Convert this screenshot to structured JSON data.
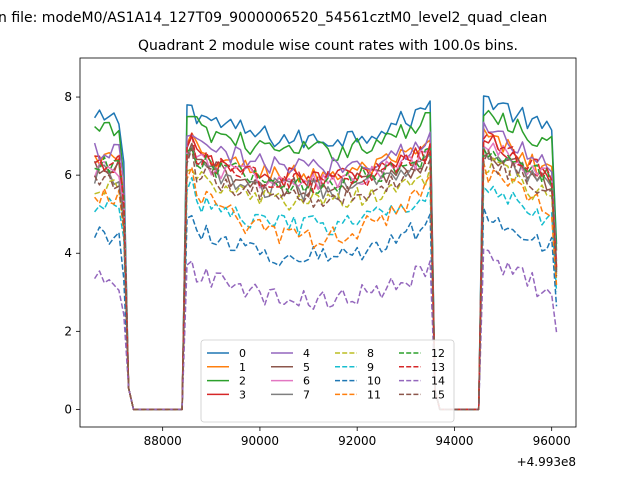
{
  "chart_data": {
    "type": "line",
    "suptitle": "n file: modeM0/AS1A14_127T09_9000006520_54561cztM0_level2_quad_clean",
    "title": "Quadrant 2 module wise count rates with 100.0s bins.",
    "xlabel": "",
    "ylabel": "",
    "x_offset_label": "+4.993e8",
    "xlim": [
      86300,
      96500
    ],
    "ylim": [
      -0.45,
      9.0
    ],
    "xticks": [
      88000,
      90000,
      92000,
      94000,
      96000
    ],
    "xtick_labels": [
      "88000",
      "90000",
      "92000",
      "94000",
      "96000"
    ],
    "yticks": [
      0,
      2,
      4,
      6,
      8
    ],
    "ytick_labels": [
      "0",
      "2",
      "4",
      "6",
      "8"
    ],
    "grid": false,
    "legend_position": "lower-center",
    "legend_ncol": 4,
    "x_segments": {
      "orbit1": {
        "x_start": 86600,
        "x_end": 87200,
        "step": 100
      },
      "gap1": {
        "x": [
          87300,
          87400,
          88400
        ]
      },
      "orbit2": {
        "x_start": 88500,
        "x_end": 93500,
        "step": 100
      },
      "gap2": {
        "x": [
          93600,
          93700,
          94500
        ]
      },
      "orbit3": {
        "x_start": 94600,
        "x_end": 96100,
        "step": 100
      }
    },
    "series": [
      {
        "name": "0",
        "color": "#1f77b4",
        "dash": "solid",
        "level": 7.7,
        "dip": 0.8
      },
      {
        "name": "1",
        "color": "#ff7f0e",
        "dash": "solid",
        "level": 6.7,
        "dip": 0.7
      },
      {
        "name": "2",
        "color": "#2ca02c",
        "dash": "solid",
        "level": 7.4,
        "dip": 0.8
      },
      {
        "name": "3",
        "color": "#d62728",
        "dash": "solid",
        "level": 6.6,
        "dip": 0.7
      },
      {
        "name": "4",
        "color": "#9467bd",
        "dash": "solid",
        "level": 6.9,
        "dip": 0.7
      },
      {
        "name": "5",
        "color": "#8c564b",
        "dash": "solid",
        "level": 6.4,
        "dip": 0.7
      },
      {
        "name": "6",
        "color": "#e377c2",
        "dash": "solid",
        "level": 6.5,
        "dip": 0.7
      },
      {
        "name": "7",
        "color": "#7f7f7f",
        "dash": "solid",
        "level": 6.3,
        "dip": 0.7
      },
      {
        "name": "8",
        "color": "#bcbd22",
        "dash": "dashed",
        "level": 6.0,
        "dip": 0.7
      },
      {
        "name": "9",
        "color": "#17becf",
        "dash": "dashed",
        "level": 5.5,
        "dip": 0.8
      },
      {
        "name": "10",
        "color": "#1f77b4",
        "dash": "dashed",
        "level": 4.8,
        "dip": 0.9
      },
      {
        "name": "11",
        "color": "#ff7f0e",
        "dash": "dashed",
        "level": 5.8,
        "dip": 1.4
      },
      {
        "name": "12",
        "color": "#2ca02c",
        "dash": "dashed",
        "level": 6.5,
        "dip": 0.7
      },
      {
        "name": "13",
        "color": "#d62728",
        "dash": "dashed",
        "level": 6.6,
        "dip": 0.8
      },
      {
        "name": "14",
        "color": "#9467bd",
        "dash": "dashed",
        "level": 3.6,
        "dip": 0.8
      },
      {
        "name": "15",
        "color": "#8c564b",
        "dash": "dashed",
        "level": 6.2,
        "dip": 0.8
      }
    ]
  }
}
